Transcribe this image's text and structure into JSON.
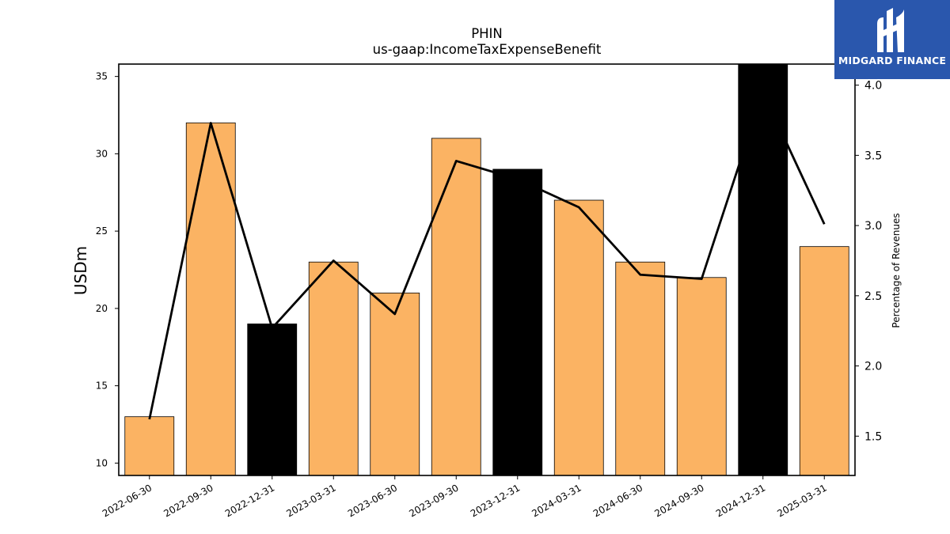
{
  "chart_data": {
    "type": "bar",
    "title": "PHIN",
    "subtitle": "us-gaap:IncomeTaxExpenseBenefit",
    "ylabel": "USDm",
    "y2label": "Percentage of Revenues",
    "categories": [
      "2022-06-30",
      "2022-09-30",
      "2022-12-31",
      "2023-03-31",
      "2023-06-30",
      "2023-09-30",
      "2023-12-31",
      "2024-03-31",
      "2024-06-30",
      "2024-09-30",
      "2024-12-31",
      "2025-03-31"
    ],
    "series": [
      {
        "type": "bar",
        "values": [
          13,
          32,
          19,
          23,
          21,
          31,
          29,
          27,
          23,
          22,
          36,
          24
        ],
        "highlight": [
          false,
          false,
          true,
          false,
          false,
          false,
          true,
          false,
          false,
          false,
          true,
          false
        ]
      },
      {
        "type": "line",
        "axis": "right",
        "values": [
          1.62,
          3.73,
          2.27,
          2.75,
          2.37,
          3.46,
          3.33,
          3.13,
          2.65,
          2.62,
          3.95,
          3.01
        ]
      }
    ],
    "ylim": [
      9.2,
      35.8
    ],
    "y2lim": [
      1.22,
      4.15
    ],
    "yticks": [
      10,
      15,
      20,
      25,
      30,
      35
    ],
    "y2ticks": [
      1.5,
      2.0,
      2.5,
      3.0,
      3.5,
      4.0
    ],
    "y2tick_labels": [
      "1.5",
      "2.0",
      "2.5",
      "3.0",
      "3.5",
      "4.0"
    ],
    "colors": {
      "bar": "#fbb363",
      "highlight_bar": "#000000",
      "line": "#000000"
    }
  },
  "logo": {
    "text": "MIDGARD FINANCE",
    "color": "#2a57ad"
  }
}
